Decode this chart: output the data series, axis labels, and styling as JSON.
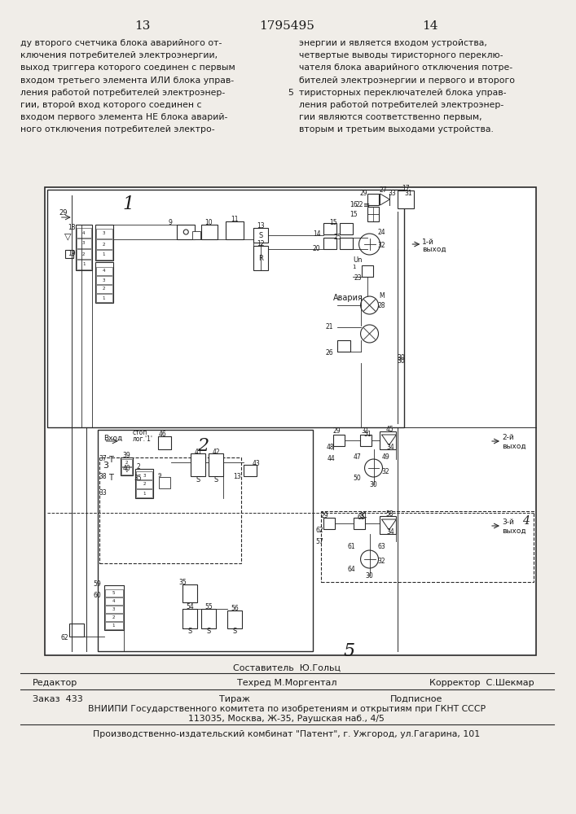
{
  "page_numbers": [
    "13",
    "1795495",
    "14"
  ],
  "left_text": [
    "ду второго счетчика блока аварийного от-",
    "ключения потребителей электроэнергии,",
    "выход триггера которого соединен с первым",
    "входом третьего элемента ИЛИ блока управ-",
    "ления работой потребителей электроэнер-",
    "гии, второй вход которого соединен с",
    "входом первого элемента НЕ блока аварий-",
    "ного отключения потребителей электро-"
  ],
  "line_number": "5",
  "right_text": [
    "энергии и является входом устройства,",
    "четвертые выводы тиристорного переклю-",
    "чателя блока аварийного отключения потре-",
    "бителей электроэнергии и первого и второго",
    "тиристорных переключателей блока управ-",
    "ления работой потребителей электроэнер-",
    "гии являются соответственно первым,",
    "вторым и третьим выходами устройства."
  ],
  "footer_sestavitel": "Составитель  Ю.Гольц",
  "footer_redaktor": "Редактор",
  "footer_tehred": "Техред М.Моргентал",
  "footer_korrektor": "Корректор  С.Шекмар",
  "footer_zakaz": "Заказ  433",
  "footer_tirazh": "Тираж",
  "footer_podpisnoe": "Подписное",
  "footer_vniipи": "ВНИИПИ Государственного комитета по изобретениям и открытиям при ГКНТ СССР",
  "footer_addr": "113035, Москва, Ж-35, Раушская наб., 4/5",
  "footer_patent": "Производственно-издательский комбинат \"Патент\", г. Ужгород, ул.Гагарина, 101",
  "bg_color": "#f0ede8",
  "text_color": "#1a1a1a",
  "line_color": "#2a2a2a"
}
